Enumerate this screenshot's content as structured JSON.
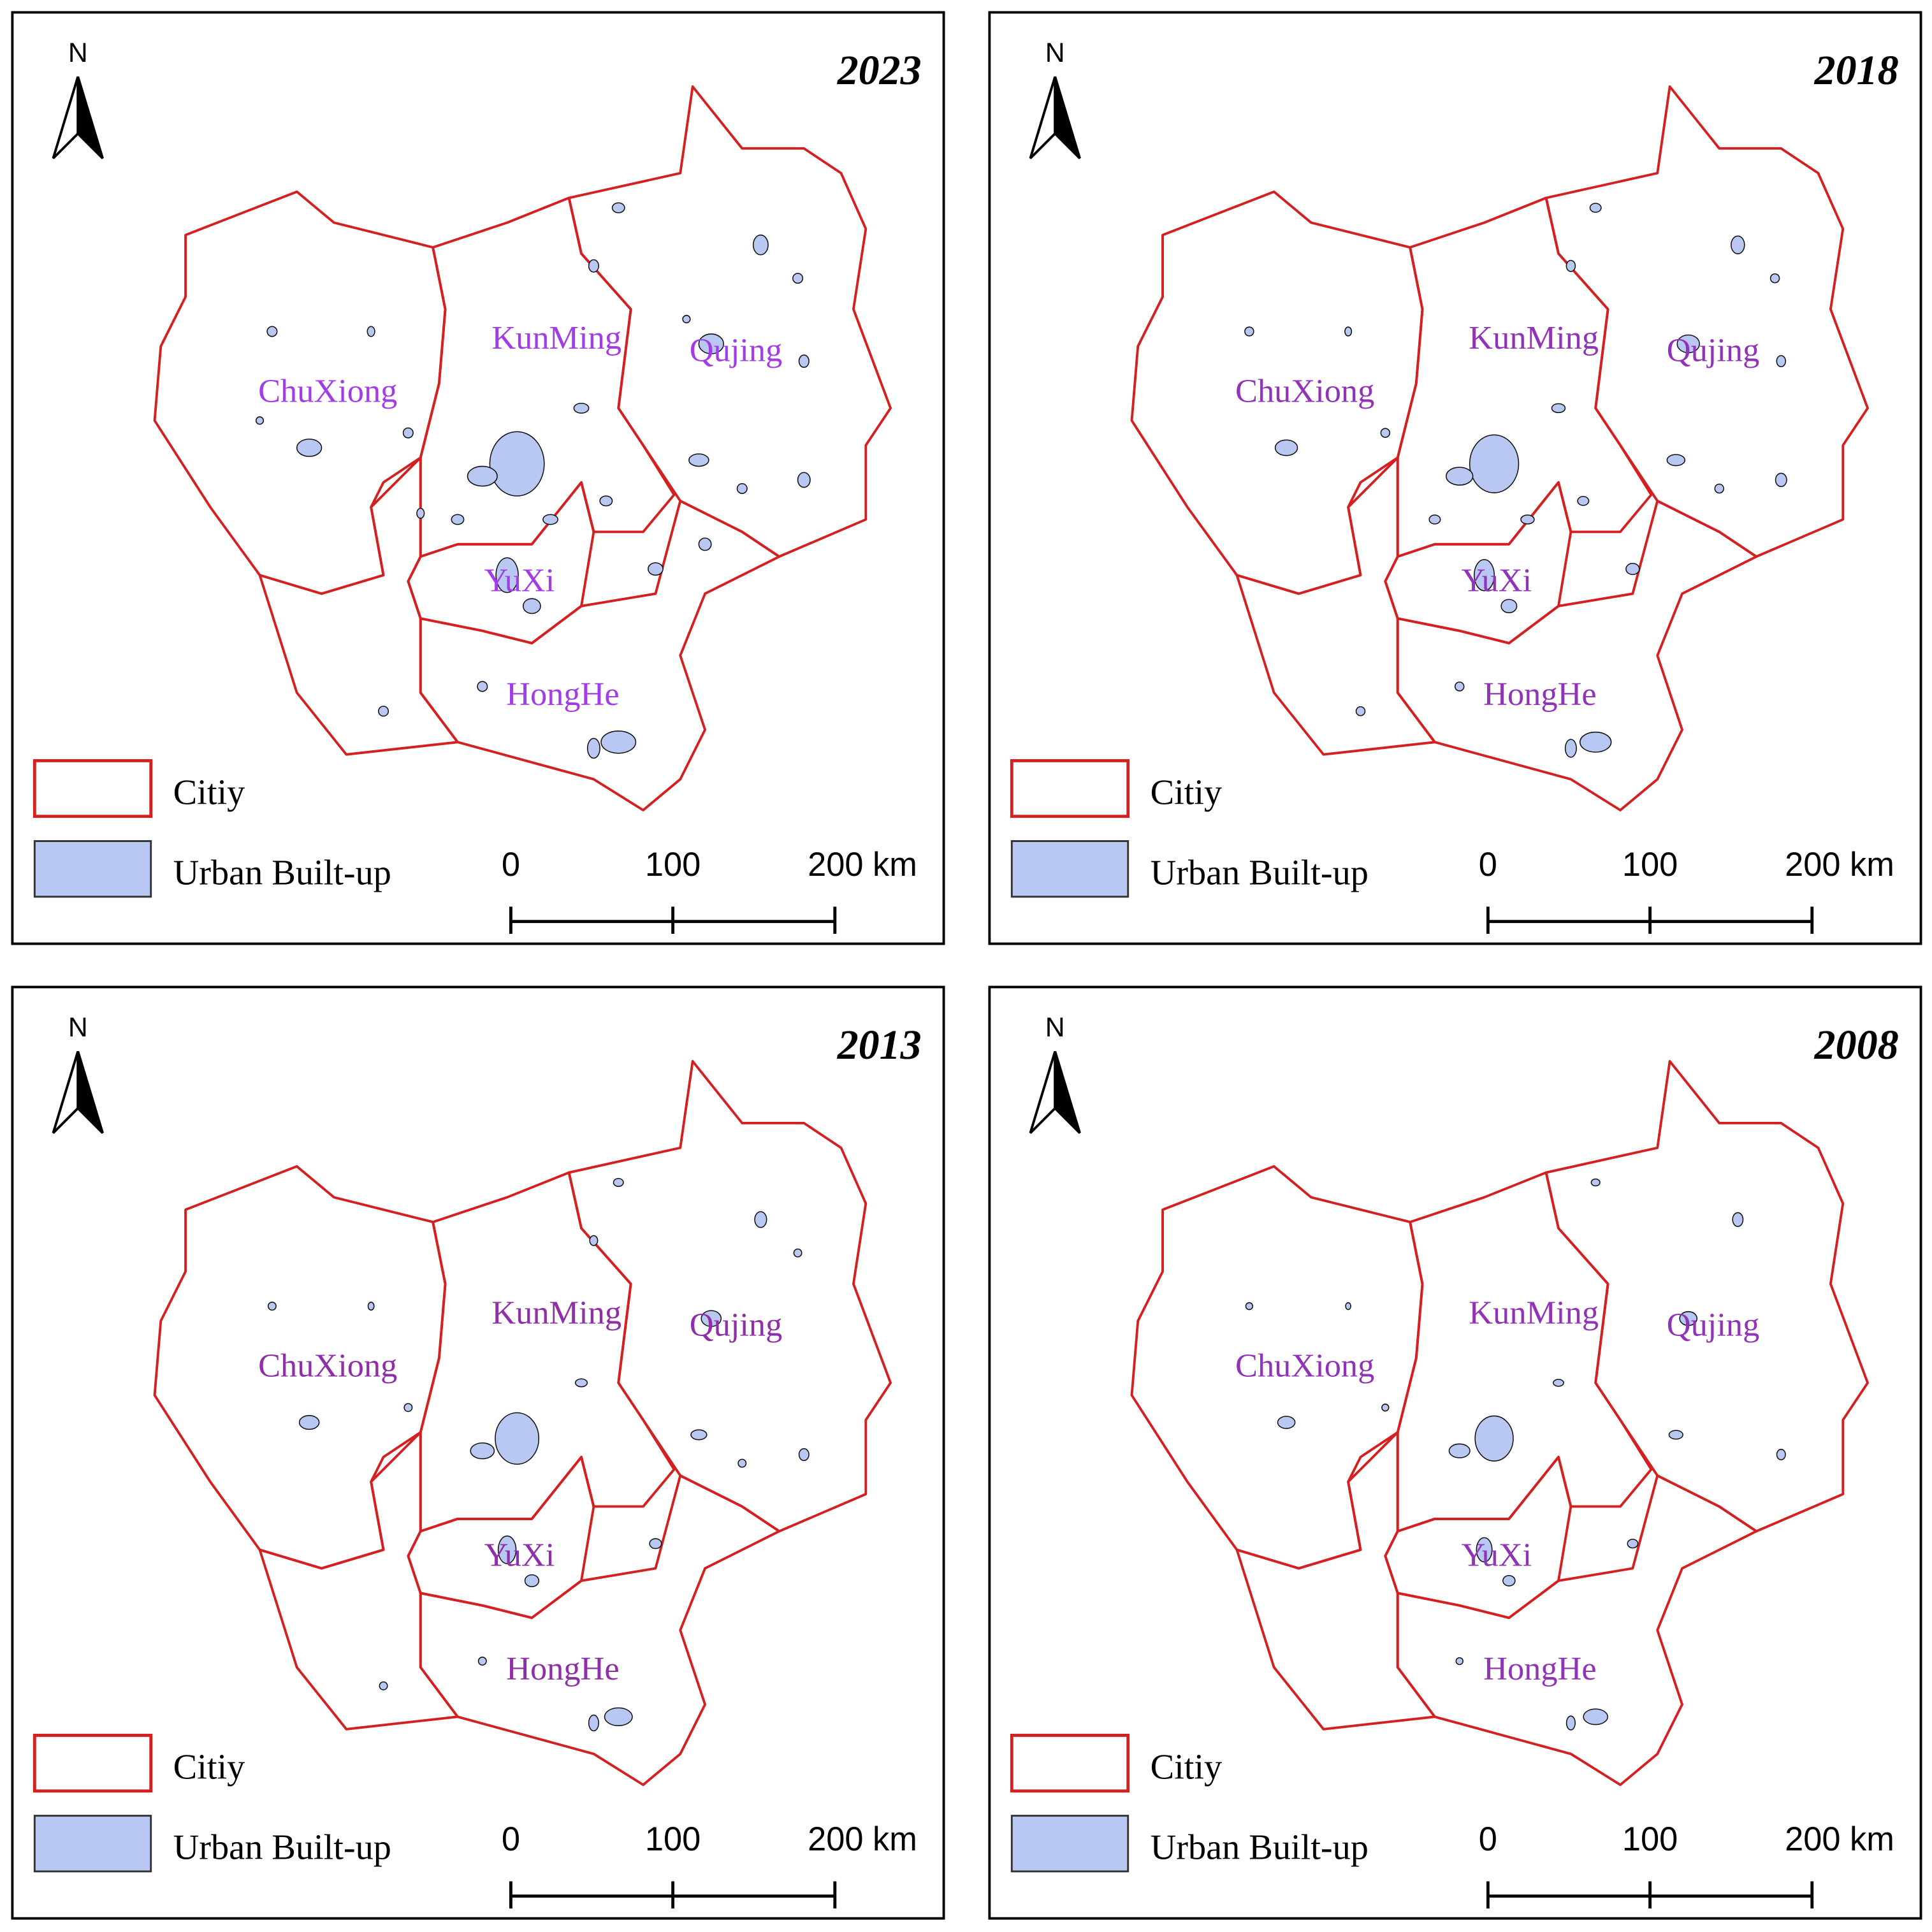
{
  "panels": [
    {
      "year": "2023",
      "north": "N",
      "cities": [
        "ChuXiong",
        "KunMing",
        "Qujing",
        "YuXi",
        "HongHe"
      ],
      "legend": [
        "Citiy",
        "Urban Built-up"
      ],
      "scale": [
        "0",
        "100",
        "200 km"
      ]
    },
    {
      "year": "2018",
      "north": "N",
      "cities": [
        "ChuXiong",
        "KunMing",
        "Qujing",
        "YuXi",
        "HongHe"
      ],
      "legend": [
        "Citiy",
        "Urban Built-up"
      ],
      "scale": [
        "0",
        "100",
        "200 km"
      ]
    },
    {
      "year": "2013",
      "north": "N",
      "cities": [
        "ChuXiong",
        "KunMing",
        "Qujing",
        "YuXi",
        "HongHe"
      ],
      "legend": [
        "Citiy",
        "Urban Built-up"
      ],
      "scale": [
        "0",
        "100",
        "200 km"
      ]
    },
    {
      "year": "2008",
      "north": "N",
      "cities": [
        "ChuXiong",
        "KunMing",
        "Qujing",
        "YuXi",
        "HongHe"
      ],
      "legend": [
        "Citiy",
        "Urban Built-up"
      ],
      "scale": [
        "0",
        "100",
        "200 km"
      ]
    }
  ]
}
